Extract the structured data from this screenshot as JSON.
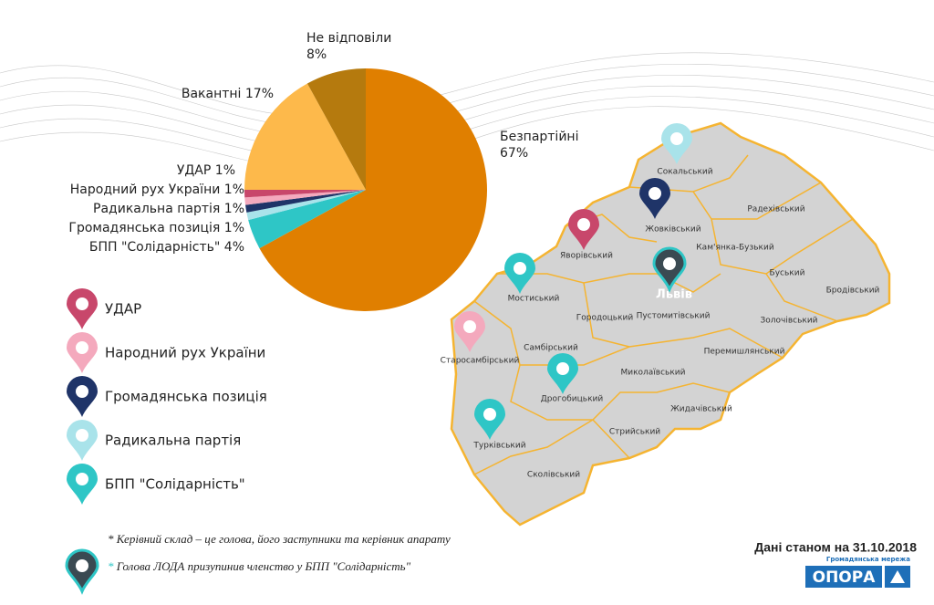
{
  "chart_data": {
    "type": "pie",
    "categories": [
      "Безпартійні",
      "БПП \"Солідарність\"",
      "Радикальна партія",
      "Громадянська позиція",
      "Народний рух України",
      "УДАР",
      "Вакантні",
      "Не відповіли"
    ],
    "values": [
      67,
      4,
      1,
      1,
      1,
      1,
      17,
      8
    ],
    "value_labels": [
      "67%",
      "4%",
      "1%",
      "1%",
      "1%",
      "1%",
      "17%",
      "8%"
    ],
    "colors": [
      "#e07f00",
      "#2ec6c6",
      "#a9e3ea",
      "#1f3468",
      "#f4a9bd",
      "#c8476b",
      "#fdb94b",
      "#b57a0e"
    ]
  },
  "legend": [
    {
      "label": "УДАР",
      "color": "#c8476b"
    },
    {
      "label": "Народний рух України",
      "color": "#f4a9bd"
    },
    {
      "label": "Громадянська позиція",
      "color": "#1f3468"
    },
    {
      "label": "Радикальна партія",
      "color": "#a9e3ea"
    },
    {
      "label": "БПП \"Солідарність\"",
      "color": "#2ec6c6"
    }
  ],
  "map": {
    "city": "Львів",
    "districts": [
      "Сокальський",
      "Радехівський",
      "Жовківський",
      "Яворівський",
      "Кам'янка-Бузький",
      "Буський",
      "Бродівський",
      "Мостиський",
      "Пустомитівський",
      "Городоцький",
      "Золочівський",
      "Старосамбірський",
      "Самбірський",
      "Перемишлянський",
      "Миколаївський",
      "Дрогобицький",
      "Жидачівський",
      "Стрийський",
      "Турківський",
      "Сколівський"
    ]
  },
  "footnotes": [
    "* Керівний склад – це голова, його заступники та керівник апарату",
    {
      "mark": "*",
      "text": "Голова ЛОДА призупинив членство у БПП \"Солідарність\""
    }
  ],
  "date_note": "Дані станом на 31.10.2018",
  "logo": {
    "name": "ОПОРА",
    "subtitle": "Громадянська мережа"
  }
}
